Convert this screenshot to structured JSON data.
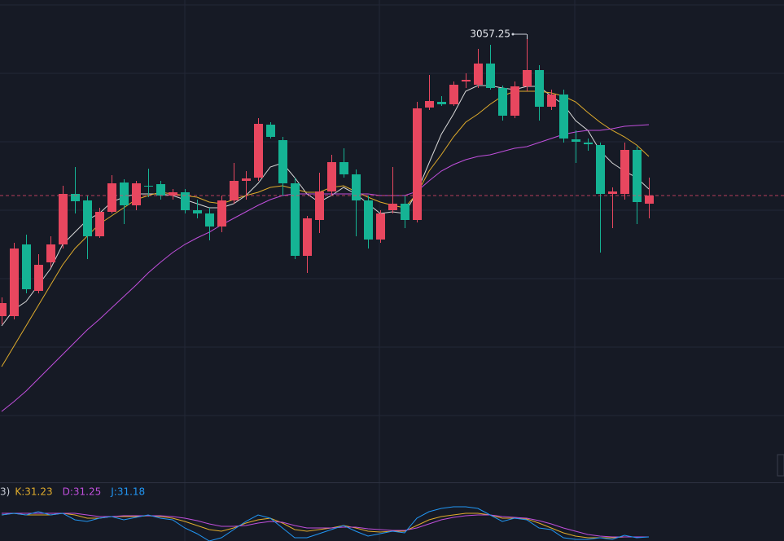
{
  "chart_data": [
    {
      "type": "candlestick",
      "up_color": "#e8475f",
      "down_color": "#15b394",
      "ylim": [
        2513.25,
        3105.25
      ],
      "annotation_index": 43,
      "last_price_line": true,
      "open": [
        2717.25,
        2717.25,
        2805.25,
        2748.25,
        2783.25,
        2805.25,
        2867.25,
        2859.25,
        2815.25,
        2845.25,
        2881.25,
        2853.25,
        2877.25,
        2879.25,
        2865.25,
        2869.25,
        2847.25,
        2843.25,
        2827.25,
        2859.25,
        2883.25,
        2887.25,
        2952.25,
        2933.25,
        2880.25,
        2791.25,
        2835.25,
        2870.25,
        2906.25,
        2891.25,
        2859.25,
        2811.25,
        2847.25,
        2855.25,
        2835.25,
        2973.25,
        2980.25,
        2977.25,
        3005.25,
        3001.25,
        3027.25,
        2997.25,
        2963.25,
        2999.25,
        3019.25,
        2974.25,
        2989.25,
        2934.25,
        2930.25,
        2927.25,
        2867.25,
        2867.25,
        2921.25,
        2855.25
      ],
      "close": [
        2733.25,
        2800.25,
        2750.25,
        2780.25,
        2805.25,
        2867.25,
        2858.25,
        2815.25,
        2845.25,
        2880.25,
        2853.25,
        2880.25,
        2876.25,
        2865.25,
        2869.25,
        2847.25,
        2843.25,
        2827.25,
        2859.25,
        2883.25,
        2886.25,
        2953.25,
        2937.25,
        2880.25,
        2791.25,
        2837.25,
        2870.25,
        2906.25,
        2891.25,
        2859.25,
        2811.25,
        2843.25,
        2855.25,
        2835.25,
        2972.25,
        2981.25,
        2977.25,
        3001.25,
        3007.25,
        3027.25,
        2997.25,
        2963.25,
        2999.25,
        3019.25,
        2974.25,
        2989.25,
        2935.25,
        2931.25,
        2928.25,
        2867.25,
        2870.25,
        2921.25,
        2857.25,
        2865.25
      ],
      "high": [
        2740.25,
        2807.25,
        2817.25,
        2793.25,
        2815.25,
        2877.25,
        2900.25,
        2865.25,
        2850.25,
        2890.25,
        2885.25,
        2883.25,
        2898.25,
        2883.25,
        2873.25,
        2873.25,
        2860.25,
        2850.25,
        2865.25,
        2905.25,
        2895.25,
        2960.25,
        2955.25,
        2937.25,
        2887.25,
        2840.25,
        2893.25,
        2915.25,
        2923.25,
        2897.25,
        2865.25,
        2847.25,
        2900.25,
        2865.25,
        2980.25,
        3013.25,
        2987.25,
        3005.25,
        3015.25,
        3045.25,
        3050.25,
        3000.25,
        3005.25,
        3057.25,
        3025.25,
        2995.25,
        2995.25,
        2945.25,
        2935.25,
        2930.25,
        2875.25,
        2930.25,
        2925.25,
        2887.25
      ],
      "low": [
        2707.25,
        2713.25,
        2745.25,
        2745.25,
        2777.25,
        2800.25,
        2843.25,
        2787.25,
        2813.25,
        2843.25,
        2830.25,
        2847.25,
        2863.25,
        2860.25,
        2860.25,
        2843.25,
        2837.25,
        2810.25,
        2820.25,
        2855.25,
        2860.25,
        2883.25,
        2935.25,
        2865.25,
        2787.25,
        2770.25,
        2819.25,
        2865.25,
        2887.25,
        2815.25,
        2800.25,
        2807.25,
        2843.25,
        2825.25,
        2832.25,
        2970.25,
        2975.25,
        2975.25,
        2997.25,
        2997.25,
        2995.25,
        2957.25,
        2960.25,
        2993.25,
        2957.25,
        2970.25,
        2930.25,
        2905.25,
        2920.25,
        2795.25,
        2825.25,
        2860.25,
        2830.25,
        2837.25
      ],
      "series": [
        {
          "color": "#d8d8d8",
          "values": [
            2705.25,
            2725.25,
            2735.25,
            2755.25,
            2775.25,
            2805.25,
            2820.25,
            2835.25,
            2843.25,
            2857.25,
            2863.25,
            2867.25,
            2867.25,
            2867.25,
            2865.25,
            2860.25,
            2855.25,
            2850.25,
            2850.25,
            2855.25,
            2865.25,
            2880.25,
            2900.25,
            2905.25,
            2887.25,
            2867.25,
            2857.25,
            2865.25,
            2875.25,
            2867.25,
            2855.25,
            2843.25,
            2845.25,
            2843.25,
            2869.25,
            2905.25,
            2940.25,
            2965.25,
            2993.25,
            3000.25,
            3000.25,
            2997.25,
            2995.25,
            2999.25,
            2999.25,
            2987.25,
            2977.25,
            2957.25,
            2945.25,
            2920.25,
            2905.25,
            2895.25,
            2887.25,
            2873.25
          ]
        },
        {
          "color": "#e0ac2c",
          "values": [
            2655.25,
            2680.25,
            2705.25,
            2730.25,
            2755.25,
            2780.25,
            2800.25,
            2815.25,
            2830.25,
            2840.25,
            2850.25,
            2860.25,
            2865.25,
            2869.25,
            2867.25,
            2865.25,
            2863.25,
            2857.25,
            2855.25,
            2860.25,
            2865.25,
            2869.25,
            2875.25,
            2877.25,
            2873.25,
            2869.25,
            2869.25,
            2875.25,
            2877.25,
            2870.25,
            2863.25,
            2857.25,
            2853.25,
            2850.25,
            2867.25,
            2895.25,
            2915.25,
            2937.25,
            2955.25,
            2965.25,
            2977.25,
            2987.25,
            2993.25,
            2993.25,
            2993.25,
            2991.25,
            2987.25,
            2980.25,
            2967.25,
            2955.25,
            2945.25,
            2937.25,
            2927.25,
            2913.25
          ]
        },
        {
          "color": "#c04fdc",
          "values": [
            2600.25,
            2612.25,
            2625.25,
            2640.25,
            2655.25,
            2670.25,
            2685.25,
            2700.25,
            2713.25,
            2727.25,
            2741.25,
            2755.25,
            2770.25,
            2783.25,
            2795.25,
            2805.25,
            2813.25,
            2820.25,
            2829.25,
            2837.25,
            2845.25,
            2853.25,
            2860.25,
            2865.25,
            2867.25,
            2867.25,
            2867.25,
            2867.25,
            2867.25,
            2867.25,
            2867.25,
            2865.25,
            2865.25,
            2865.25,
            2870.25,
            2883.25,
            2895.25,
            2903.25,
            2909.25,
            2913.25,
            2915.25,
            2919.25,
            2923.25,
            2925.25,
            2930.25,
            2935.25,
            2940.25,
            2943.25,
            2945.25,
            2945.25,
            2947.25,
            2950.25,
            2951.25,
            2952.25
          ]
        }
      ]
    },
    {
      "type": "line",
      "label": "3)",
      "ylim": [
        26,
        94
      ],
      "series": [
        {
          "name": "K:31.23",
          "color": "#e0ac2c",
          "values": [
            58,
            60,
            58,
            58,
            58,
            60,
            58,
            54,
            54,
            56,
            56,
            56,
            57,
            56,
            54,
            50,
            45,
            40,
            38,
            42,
            48,
            52,
            54,
            48,
            40,
            38,
            40,
            42,
            45,
            42,
            38,
            37,
            38,
            38,
            45,
            52,
            56,
            58,
            60,
            60,
            58,
            54,
            54,
            53,
            48,
            42,
            36,
            32,
            30,
            30,
            30,
            31,
            31,
            31
          ]
        },
        {
          "name": "D:31.25",
          "color": "#c04fdc",
          "values": [
            60,
            60,
            60,
            60,
            60,
            60,
            60,
            58,
            56,
            56,
            57,
            57,
            57,
            57,
            56,
            54,
            51,
            47,
            44,
            44,
            45,
            48,
            50,
            49,
            45,
            42,
            42,
            42,
            43,
            43,
            41,
            40,
            39,
            39,
            42,
            47,
            52,
            55,
            57,
            58,
            58,
            56,
            55,
            54,
            51,
            47,
            42,
            38,
            34,
            32,
            31,
            31,
            31,
            31
          ]
        },
        {
          "name": "J:31.18",
          "color": "#2196f3",
          "values": [
            58,
            60,
            58,
            62,
            58,
            60,
            52,
            50,
            54,
            56,
            52,
            55,
            58,
            54,
            52,
            42,
            35,
            26,
            30,
            40,
            50,
            58,
            54,
            42,
            30,
            30,
            35,
            40,
            45,
            38,
            32,
            35,
            38,
            36,
            54,
            62,
            66,
            68,
            68,
            66,
            58,
            50,
            54,
            52,
            42,
            40,
            30,
            28,
            28,
            30,
            28,
            33,
            30,
            31
          ]
        }
      ]
    }
  ]
}
